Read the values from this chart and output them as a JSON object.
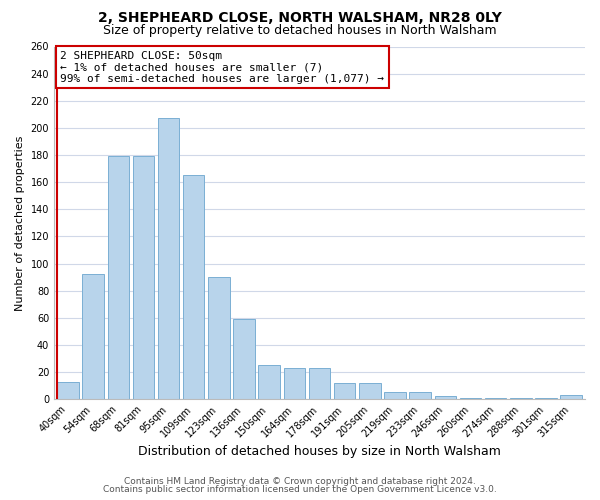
{
  "title": "2, SHEPHEARD CLOSE, NORTH WALSHAM, NR28 0LY",
  "subtitle": "Size of property relative to detached houses in North Walsham",
  "xlabel": "Distribution of detached houses by size in North Walsham",
  "ylabel": "Number of detached properties",
  "bar_labels": [
    "40sqm",
    "54sqm",
    "68sqm",
    "81sqm",
    "95sqm",
    "109sqm",
    "123sqm",
    "136sqm",
    "150sqm",
    "164sqm",
    "178sqm",
    "191sqm",
    "205sqm",
    "219sqm",
    "233sqm",
    "246sqm",
    "260sqm",
    "274sqm",
    "288sqm",
    "301sqm",
    "315sqm"
  ],
  "bar_values": [
    13,
    92,
    179,
    179,
    207,
    165,
    90,
    59,
    25,
    23,
    23,
    12,
    12,
    5,
    5,
    2,
    1,
    1,
    1,
    1,
    3
  ],
  "bar_color": "#b8d4eb",
  "bar_edge_color": "#7aafd4",
  "highlight_line_color": "#cc0000",
  "annotation_line1": "2 SHEPHEARD CLOSE: 50sqm",
  "annotation_line2": "← 1% of detached houses are smaller (7)",
  "annotation_line3": "99% of semi-detached houses are larger (1,077) →",
  "annotation_box_color": "#ffffff",
  "annotation_box_edge_color": "#cc0000",
  "ylim": [
    0,
    260
  ],
  "yticks": [
    0,
    20,
    40,
    60,
    80,
    100,
    120,
    140,
    160,
    180,
    200,
    220,
    240,
    260
  ],
  "footer1": "Contains HM Land Registry data © Crown copyright and database right 2024.",
  "footer2": "Contains public sector information licensed under the Open Government Licence v3.0.",
  "background_color": "#ffffff",
  "grid_color": "#d0d8e8",
  "title_fontsize": 10,
  "subtitle_fontsize": 9,
  "xlabel_fontsize": 9,
  "ylabel_fontsize": 8,
  "tick_fontsize": 7,
  "annotation_fontsize": 8,
  "footer_fontsize": 6.5
}
